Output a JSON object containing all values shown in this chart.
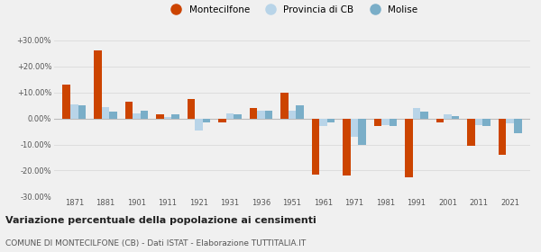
{
  "years": [
    1871,
    1881,
    1901,
    1911,
    1921,
    1931,
    1936,
    1951,
    1961,
    1971,
    1981,
    1991,
    2001,
    2011,
    2021
  ],
  "montecilfone": [
    13.0,
    26.0,
    6.5,
    1.5,
    7.5,
    -1.5,
    4.0,
    10.0,
    -21.5,
    -22.0,
    -3.0,
    -22.5,
    -1.5,
    -10.5,
    -14.0
  ],
  "provincia_cb": [
    5.5,
    4.5,
    2.0,
    0.5,
    -4.5,
    2.0,
    3.0,
    3.0,
    -3.0,
    -7.0,
    -2.5,
    4.0,
    1.5,
    -2.5,
    -2.0
  ],
  "molise": [
    5.0,
    2.5,
    3.0,
    1.5,
    -1.5,
    1.5,
    3.0,
    5.0,
    -1.5,
    -10.0,
    -3.0,
    2.5,
    1.0,
    -3.0,
    -5.5
  ],
  "color_monte": "#cc4400",
  "color_prov": "#b8d4e8",
  "color_mol": "#7aaec8",
  "ylim": [
    -30,
    30
  ],
  "yticks": [
    -30,
    -20,
    -10,
    0,
    10,
    20,
    30
  ],
  "ytick_labels": [
    "-30.00%",
    "-20.00%",
    "-10.00%",
    "0.00%",
    "+10.00%",
    "+20.00%",
    "+30.00%"
  ],
  "title": "Variazione percentuale della popolazione ai censimenti",
  "subtitle": "COMUNE DI MONTECILFONE (CB) - Dati ISTAT - Elaborazione TUTTITALIA.IT",
  "legend_labels": [
    "Montecilfone",
    "Provincia di CB",
    "Molise"
  ],
  "bg_color": "#f0f0f0",
  "grid_color": "#dddddd"
}
